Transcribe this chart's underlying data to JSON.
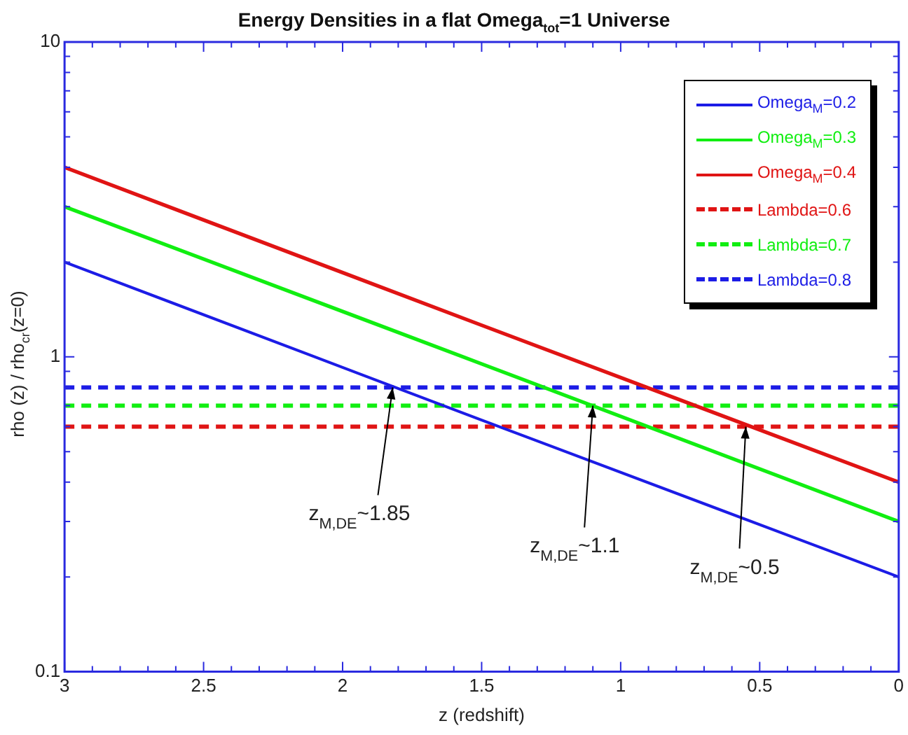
{
  "chart_data": {
    "type": "line",
    "title": "Energy Densities in a flat Omega$_{tot}$=1 Universe",
    "xlabel": "z (redshift)",
    "ylabel": "rho (z) / rho$_{cr}$(z=0)",
    "log": "y",
    "grid": false,
    "legend": "top right",
    "marker": "none",
    "xlim": [
      3,
      0
    ],
    "ylim": [
      0.1,
      10
    ],
    "xticks": [
      3,
      {
        "value": 2.9,
        "label": null
      },
      {
        "value": 2.8,
        "label": null
      },
      {
        "value": 2.7,
        "label": null
      },
      {
        "value": 2.6,
        "label": null
      },
      2.5,
      {
        "value": 2.4,
        "label": null
      },
      {
        "value": 2.3,
        "label": null
      },
      {
        "value": 2.2,
        "label": null
      },
      {
        "value": 2.1,
        "label": null
      },
      2,
      {
        "value": 1.9,
        "label": null
      },
      {
        "value": 1.8,
        "label": null
      },
      {
        "value": 1.7,
        "label": null
      },
      {
        "value": 1.6,
        "label": null
      },
      1.5,
      {
        "value": 1.4,
        "label": null
      },
      {
        "value": 1.3,
        "label": null
      },
      {
        "value": 1.2,
        "label": null
      },
      {
        "value": 1.1,
        "label": null
      },
      1,
      {
        "value": 0.9,
        "label": null
      },
      {
        "value": 0.8,
        "label": null
      },
      {
        "value": 0.7,
        "label": null
      },
      {
        "value": 0.6,
        "label": null
      },
      0.5,
      {
        "value": 0.4,
        "label": null
      },
      {
        "value": 0.3,
        "label": null
      },
      {
        "value": 0.2,
        "label": null
      },
      {
        "value": 0.1,
        "label": null
      },
      0
    ],
    "yticks": [
      0.1,
      {
        "value": 0.2,
        "label": null
      },
      {
        "value": 0.3,
        "label": null
      },
      {
        "value": 0.4,
        "label": null
      },
      {
        "value": 0.5,
        "label": null
      },
      {
        "value": 0.6,
        "label": null
      },
      {
        "value": 0.7,
        "label": null
      },
      {
        "value": 0.8,
        "label": null
      },
      {
        "value": 0.9,
        "label": null
      },
      1,
      {
        "value": 2,
        "label": null
      },
      {
        "value": 3,
        "label": null
      },
      {
        "value": 4,
        "label": null
      },
      {
        "value": 5,
        "label": null
      },
      {
        "value": 6,
        "label": null
      },
      {
        "value": 7,
        "label": null
      },
      {
        "value": 8,
        "label": null
      },
      {
        "value": 9,
        "label": null
      },
      10
    ],
    "x": [
      3,
      1.5,
      0
    ],
    "series": [
      {
        "name": "Omega$_{M}$=0.2",
        "color": "#1c1ce6",
        "line_style": "solid",
        "values": [
          2,
          0.63,
          0.2
        ]
      },
      {
        "name": "Omega$_{M}$=0.3",
        "color": "#11ee11",
        "line_style": "solid",
        "values": [
          3,
          0.95,
          0.3
        ]
      },
      {
        "name": "Omega$_{M}$=0.4",
        "color": "#e01414",
        "line_style": "solid",
        "values": [
          4,
          1.26,
          0.4
        ]
      },
      {
        "name": "Lambda=0.6",
        "color": "#e01414",
        "line_style": "dashed",
        "values": [
          0.6,
          0.6,
          0.6
        ]
      },
      {
        "name": "Lambda=0.7",
        "color": "#11ee11",
        "line_style": "dashed",
        "values": [
          0.7,
          0.7,
          0.7
        ]
      },
      {
        "name": "Lambda=0.8",
        "color": "#1c1ce6",
        "line_style": "dashed",
        "values": [
          0.8,
          0.8,
          0.8
        ]
      }
    ],
    "annotations": [
      {
        "text": "z$_{M,DE}$~1.85",
        "x": 1.82,
        "y": 0.8
      },
      {
        "text": "z$_{M,DE}$~1.1",
        "x": 1.1,
        "y": 0.7
      },
      {
        "text": "z$_{M,DE}$~0.5",
        "x": 0.55,
        "y": 0.6
      }
    ]
  }
}
